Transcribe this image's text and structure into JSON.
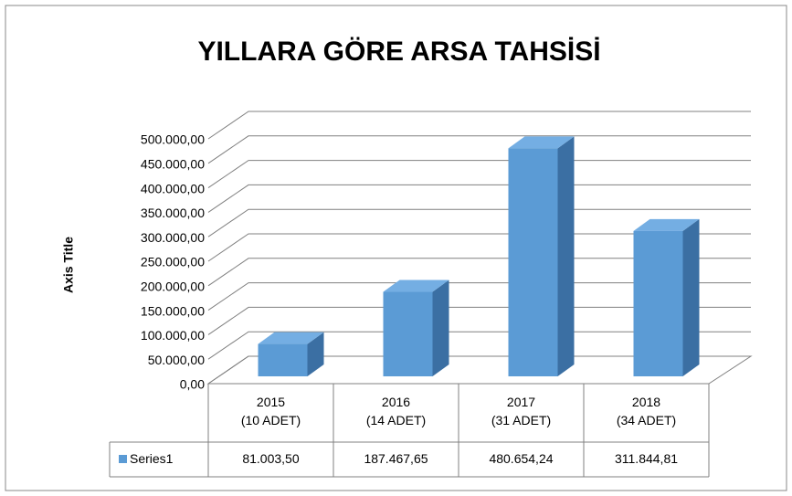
{
  "chart_data": {
    "type": "bar3d",
    "title": "YILLARA GÖRE ARSA TAHSİSİ",
    "y_axis_title": "Axis Title",
    "categories": [
      "2015\n(10 ADET)",
      "2016\n(14 ADET)",
      "2017\n(31 ADET)",
      "2018\n(34 ADET)"
    ],
    "series": [
      {
        "name": "Series1",
        "color": "#5b9bd5",
        "values": [
          81003.5,
          187467.65,
          480654.24,
          311844.81
        ],
        "value_labels": [
          "81.003,50",
          "187.467,65",
          "480.654,24",
          "311.844,81"
        ]
      }
    ],
    "ylim": [
      0,
      500000
    ],
    "yticks": [
      {
        "value": 0,
        "label": "0,00"
      },
      {
        "value": 50000,
        "label": "50.000,00"
      },
      {
        "value": 100000,
        "label": "100.000,00"
      },
      {
        "value": 150000,
        "label": "150.000,00"
      },
      {
        "value": 200000,
        "label": "200.000,00"
      },
      {
        "value": 250000,
        "label": "250.000,00"
      },
      {
        "value": 300000,
        "label": "300.000,00"
      },
      {
        "value": 350000,
        "label": "350.000,00"
      },
      {
        "value": 400000,
        "label": "400.000,00"
      },
      {
        "value": 450000,
        "label": "450.000,00"
      },
      {
        "value": 500000,
        "label": "500.000,00"
      }
    ],
    "grid": true,
    "data_table": true
  }
}
